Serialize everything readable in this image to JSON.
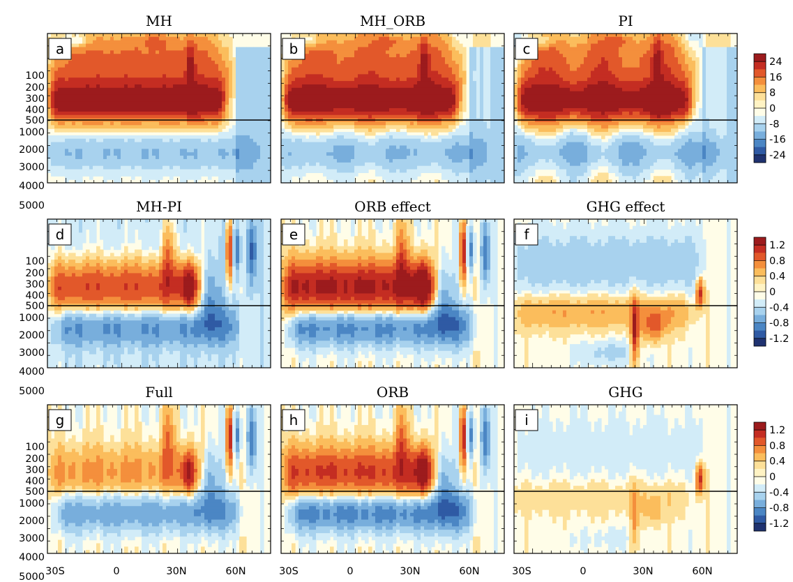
{
  "chart_data": {
    "type": "heatmap",
    "panel_count": 9,
    "x_axis": {
      "ticks": [
        "30S",
        "0",
        "30N",
        "60N"
      ],
      "range": [
        -40,
        80
      ]
    },
    "y_axis": {
      "ticks": [
        "100",
        "200",
        "300",
        "400",
        "500",
        "1000",
        "2000",
        "3000",
        "4000",
        "5000"
      ],
      "reference_line": 500
    },
    "panels": [
      {
        "label": "a",
        "title": "MH",
        "colorbar": 0
      },
      {
        "label": "b",
        "title": "MH_ORB",
        "colorbar": 0
      },
      {
        "label": "c",
        "title": "PI",
        "colorbar": 0
      },
      {
        "label": "d",
        "title": "MH-PI",
        "colorbar": 1
      },
      {
        "label": "e",
        "title": "ORB effect",
        "colorbar": 1
      },
      {
        "label": "f",
        "title": "GHG effect",
        "colorbar": 1
      },
      {
        "label": "g",
        "title": "Full",
        "colorbar": 2
      },
      {
        "label": "h",
        "title": "ORB",
        "colorbar": 2
      },
      {
        "label": "i",
        "title": "GHG",
        "colorbar": 2
      }
    ],
    "colorbars": [
      {
        "labels": [
          "24",
          "16",
          "8",
          "0",
          "-8",
          "-16",
          "-24"
        ]
      },
      {
        "labels": [
          "1.2",
          "0.8",
          "0.4",
          "0",
          "-0.4",
          "-0.8",
          "-1.2"
        ]
      },
      {
        "labels": [
          "1.2",
          "0.8",
          "0.4",
          "0",
          "-0.4",
          "-0.8",
          "-1.2"
        ]
      }
    ],
    "palette": [
      "#1f3270",
      "#2f5aa4",
      "#4b86c4",
      "#78aedc",
      "#a8d2ee",
      "#d2ecf8",
      "#fffde8",
      "#fff3c4",
      "#fde099",
      "#fbbd5c",
      "#f48f3c",
      "#e2582a",
      "#c42d22",
      "#9c1b1d"
    ]
  }
}
